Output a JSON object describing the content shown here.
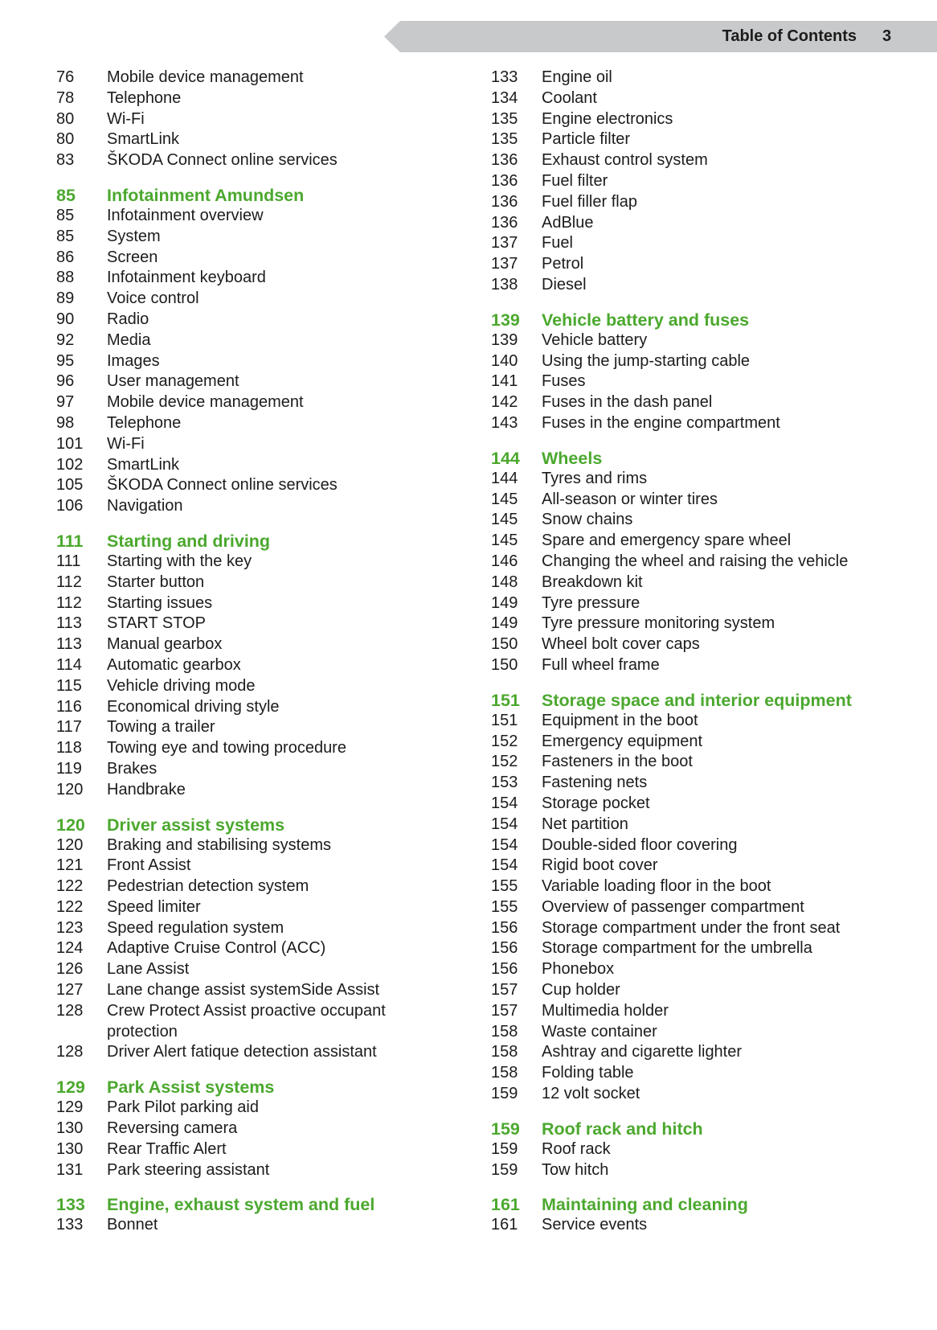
{
  "header": {
    "title": "Table of Contents",
    "page_number": "3"
  },
  "colors": {
    "accent_green": "#4ba82e",
    "header_band": "#c8c9cb",
    "text": "#1c1c1c"
  },
  "columns": [
    {
      "items": [
        {
          "page": "76",
          "title": "Mobile device management"
        },
        {
          "page": "78",
          "title": "Telephone"
        },
        {
          "page": "80",
          "title": "Wi-Fi"
        },
        {
          "page": "80",
          "title": "SmartLink"
        },
        {
          "page": "83",
          "title": "ŠKODA Connect online services"
        },
        {
          "page": "85",
          "title": "Infotainment Amundsen",
          "heading": true
        },
        {
          "page": "85",
          "title": "Infotainment overview"
        },
        {
          "page": "85",
          "title": "System"
        },
        {
          "page": "86",
          "title": "Screen"
        },
        {
          "page": "88",
          "title": "Infotainment keyboard"
        },
        {
          "page": "89",
          "title": "Voice control"
        },
        {
          "page": "90",
          "title": "Radio"
        },
        {
          "page": "92",
          "title": "Media"
        },
        {
          "page": "95",
          "title": "Images"
        },
        {
          "page": "96",
          "title": "User management"
        },
        {
          "page": "97",
          "title": "Mobile device management"
        },
        {
          "page": "98",
          "title": "Telephone"
        },
        {
          "page": "101",
          "title": "Wi-Fi"
        },
        {
          "page": "102",
          "title": "SmartLink"
        },
        {
          "page": "105",
          "title": "ŠKODA Connect online services"
        },
        {
          "page": "106",
          "title": "Navigation"
        },
        {
          "page": "111",
          "title": "Starting and driving",
          "heading": true
        },
        {
          "page": "111",
          "title": "Starting with the key"
        },
        {
          "page": "112",
          "title": "Starter button"
        },
        {
          "page": "112",
          "title": "Starting issues"
        },
        {
          "page": "113",
          "title": "START STOP"
        },
        {
          "page": "113",
          "title": "Manual gearbox"
        },
        {
          "page": "114",
          "title": "Automatic gearbox"
        },
        {
          "page": "115",
          "title": "Vehicle driving mode"
        },
        {
          "page": "116",
          "title": "Economical driving style"
        },
        {
          "page": "117",
          "title": "Towing a trailer"
        },
        {
          "page": "118",
          "title": "Towing eye and towing procedure"
        },
        {
          "page": "119",
          "title": "Brakes"
        },
        {
          "page": "120",
          "title": "Handbrake"
        },
        {
          "page": "120",
          "title": "Driver assist systems",
          "heading": true
        },
        {
          "page": "120",
          "title": "Braking and stabilising systems"
        },
        {
          "page": "121",
          "title": "Front Assist"
        },
        {
          "page": "122",
          "title": "Pedestrian detection system"
        },
        {
          "page": "122",
          "title": "Speed limiter"
        },
        {
          "page": "123",
          "title": "Speed regulation system"
        },
        {
          "page": "124",
          "title": "Adaptive Cruise Control (ACC)"
        },
        {
          "page": "126",
          "title": "Lane Assist"
        },
        {
          "page": "127",
          "title": "Lane change assist systemSide Assist"
        },
        {
          "page": "128",
          "title": "Crew Protect Assist proactive occupant protection"
        },
        {
          "page": "128",
          "title": "Driver Alert fatique detection assistant"
        },
        {
          "page": "129",
          "title": "Park Assist systems",
          "heading": true
        },
        {
          "page": "129",
          "title": "Park Pilot parking aid"
        },
        {
          "page": "130",
          "title": "Reversing camera"
        },
        {
          "page": "130",
          "title": "Rear Traffic Alert"
        },
        {
          "page": "131",
          "title": "Park steering assistant"
        },
        {
          "page": "133",
          "title": "Engine, exhaust system and fuel",
          "heading": true
        },
        {
          "page": "133",
          "title": "Bonnet"
        }
      ]
    },
    {
      "items": [
        {
          "page": "133",
          "title": "Engine oil"
        },
        {
          "page": "134",
          "title": "Coolant"
        },
        {
          "page": "135",
          "title": "Engine electronics"
        },
        {
          "page": "135",
          "title": "Particle filter"
        },
        {
          "page": "136",
          "title": "Exhaust control system"
        },
        {
          "page": "136",
          "title": "Fuel filter"
        },
        {
          "page": "136",
          "title": "Fuel filler flap"
        },
        {
          "page": "136",
          "title": "AdBlue"
        },
        {
          "page": "137",
          "title": "Fuel"
        },
        {
          "page": "137",
          "title": "Petrol"
        },
        {
          "page": "138",
          "title": "Diesel"
        },
        {
          "page": "139",
          "title": "Vehicle battery and fuses",
          "heading": true
        },
        {
          "page": "139",
          "title": "Vehicle battery"
        },
        {
          "page": "140",
          "title": "Using the jump-starting cable"
        },
        {
          "page": "141",
          "title": "Fuses"
        },
        {
          "page": "142",
          "title": "Fuses in the dash panel"
        },
        {
          "page": "143",
          "title": "Fuses in the engine compartment"
        },
        {
          "page": "144",
          "title": "Wheels",
          "heading": true
        },
        {
          "page": "144",
          "title": "Tyres and rims"
        },
        {
          "page": "145",
          "title": "All-season or winter tires"
        },
        {
          "page": "145",
          "title": "Snow chains"
        },
        {
          "page": "145",
          "title": "Spare and emergency spare wheel"
        },
        {
          "page": "146",
          "title": "Changing the wheel and raising the vehicle"
        },
        {
          "page": "148",
          "title": "Breakdown kit"
        },
        {
          "page": "149",
          "title": "Tyre pressure"
        },
        {
          "page": "149",
          "title": "Tyre pressure monitoring system"
        },
        {
          "page": "150",
          "title": "Wheel bolt cover caps"
        },
        {
          "page": "150",
          "title": "Full wheel frame"
        },
        {
          "page": "151",
          "title": "Storage space and interior equipment",
          "heading": true
        },
        {
          "page": "151",
          "title": "Equipment in the boot"
        },
        {
          "page": "152",
          "title": "Emergency equipment"
        },
        {
          "page": "152",
          "title": "Fasteners in the boot"
        },
        {
          "page": "153",
          "title": "Fastening nets"
        },
        {
          "page": "154",
          "title": "Storage pocket"
        },
        {
          "page": "154",
          "title": "Net partition"
        },
        {
          "page": "154",
          "title": "Double-sided floor covering"
        },
        {
          "page": "154",
          "title": "Rigid boot cover"
        },
        {
          "page": "155",
          "title": "Variable loading floor in the boot"
        },
        {
          "page": "155",
          "title": "Overview of passenger compartment"
        },
        {
          "page": "156",
          "title": "Storage compartment under the front seat"
        },
        {
          "page": "156",
          "title": "Storage compartment for the umbrella"
        },
        {
          "page": "156",
          "title": "Phonebox"
        },
        {
          "page": "157",
          "title": "Cup holder"
        },
        {
          "page": "157",
          "title": "Multimedia holder"
        },
        {
          "page": "158",
          "title": "Waste container"
        },
        {
          "page": "158",
          "title": "Ashtray and cigarette lighter"
        },
        {
          "page": "158",
          "title": "Folding table"
        },
        {
          "page": "159",
          "title": "12 volt socket"
        },
        {
          "page": "159",
          "title": "Roof rack and hitch",
          "heading": true
        },
        {
          "page": "159",
          "title": "Roof rack"
        },
        {
          "page": "159",
          "title": "Tow hitch"
        },
        {
          "page": "161",
          "title": "Maintaining and cleaning",
          "heading": true
        },
        {
          "page": "161",
          "title": "Service events"
        }
      ]
    }
  ]
}
